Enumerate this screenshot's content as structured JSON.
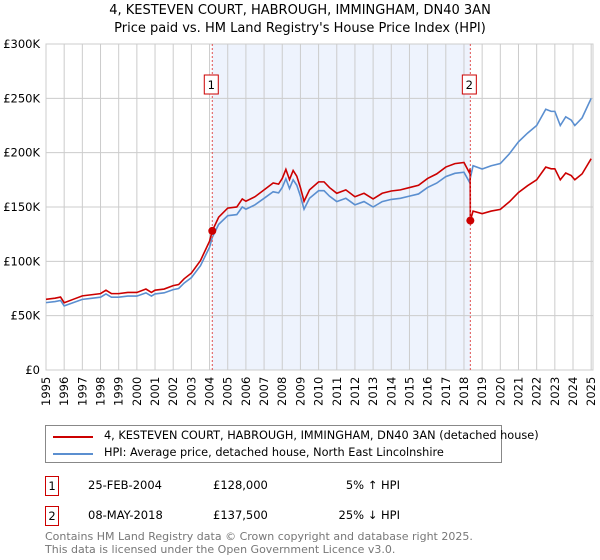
{
  "title": "4, KESTEVEN COURT, HABROUGH, IMMINGHAM, DN40 3AN",
  "subtitle": "Price paid vs. HM Land Registry's House Price Index (HPI)",
  "chart_data": {
    "type": "line",
    "xlim": [
      1995,
      2025.1
    ],
    "ylim": [
      0,
      300000
    ],
    "y_ticks": [
      {
        "v": 0,
        "l": "£0"
      },
      {
        "v": 50000,
        "l": "£50K"
      },
      {
        "v": 100000,
        "l": "£100K"
      },
      {
        "v": 150000,
        "l": "£150K"
      },
      {
        "v": 200000,
        "l": "£200K"
      },
      {
        "v": 250000,
        "l": "£250K"
      },
      {
        "v": 300000,
        "l": "£300K"
      }
    ],
    "x_ticks": [
      "1995",
      "1996",
      "1997",
      "1998",
      "1999",
      "2000",
      "2001",
      "2002",
      "2003",
      "2004",
      "2005",
      "2006",
      "2007",
      "2008",
      "2009",
      "2010",
      "2011",
      "2012",
      "2013",
      "2014",
      "2015",
      "2016",
      "2017",
      "2018",
      "2019",
      "2020",
      "2021",
      "2022",
      "2023",
      "2024",
      "2025"
    ],
    "grid": true,
    "colors": {
      "property": "#cc0000",
      "hpi": "#5b8fd0",
      "shade": "#eef3fd"
    },
    "hpi_series": {
      "x": [
        1995,
        1995.5,
        1995.8,
        1996,
        1996.5,
        1997,
        1997.5,
        1998,
        1998.3,
        1998.6,
        1999,
        1999.5,
        2000,
        2000.5,
        2000.8,
        2001,
        2001.5,
        2002,
        2002.3,
        2002.6,
        2003,
        2003.5,
        2004,
        2004.15,
        2004.5,
        2005,
        2005.5,
        2005.8,
        2006,
        2006.5,
        2007,
        2007.5,
        2007.8,
        2008,
        2008.2,
        2008.4,
        2008.6,
        2008.8,
        2009,
        2009.2,
        2009.5,
        2010,
        2010.3,
        2010.6,
        2011,
        2011.5,
        2012,
        2012.5,
        2013,
        2013.5,
        2014,
        2014.5,
        2015,
        2015.5,
        2016,
        2016.5,
        2017,
        2017.5,
        2018,
        2018.3,
        2018.5,
        2019,
        2019.5,
        2020,
        2020.5,
        2021,
        2021.5,
        2022,
        2022.5,
        2022.8,
        2023,
        2023.3,
        2023.6,
        2023.9,
        2024.1,
        2024.5,
        2025
      ],
      "y": [
        62000,
        63000,
        64000,
        59000,
        62000,
        65000,
        66000,
        67000,
        70000,
        67000,
        67000,
        68000,
        68000,
        71000,
        68000,
        70000,
        71000,
        74000,
        75000,
        80000,
        85000,
        96000,
        113000,
        122000,
        134000,
        142000,
        143000,
        150000,
        148000,
        152000,
        158000,
        164000,
        163000,
        168000,
        176000,
        167000,
        175000,
        170000,
        160000,
        148000,
        158000,
        165000,
        165000,
        160000,
        155000,
        158000,
        152000,
        155000,
        150000,
        155000,
        157000,
        158000,
        160000,
        162000,
        168000,
        172000,
        178000,
        181000,
        182000,
        173000,
        188000,
        185000,
        188000,
        190000,
        199000,
        210000,
        218000,
        225000,
        240000,
        238000,
        238000,
        225000,
        233000,
        230000,
        225000,
        232000,
        250000
      ]
    },
    "sales": [
      {
        "id": "1",
        "x": 2004.15,
        "date": "25-FEB-2004",
        "price": 128000,
        "price_label": "£128,000",
        "hpi_diff": "5% ↑ HPI"
      },
      {
        "id": "2",
        "x": 2018.35,
        "date": "08-MAY-2018",
        "price": 137500,
        "price_label": "£137,500",
        "hpi_diff": "25% ↓ HPI"
      }
    ],
    "legend": [
      "4, KESTEVEN COURT, HABROUGH, IMMINGHAM, DN40 3AN (detached house)",
      "HPI: Average price, detached house, North East Lincolnshire"
    ]
  },
  "footer": [
    "Contains HM Land Registry data © Crown copyright and database right 2025.",
    "This data is licensed under the Open Government Licence v3.0."
  ]
}
